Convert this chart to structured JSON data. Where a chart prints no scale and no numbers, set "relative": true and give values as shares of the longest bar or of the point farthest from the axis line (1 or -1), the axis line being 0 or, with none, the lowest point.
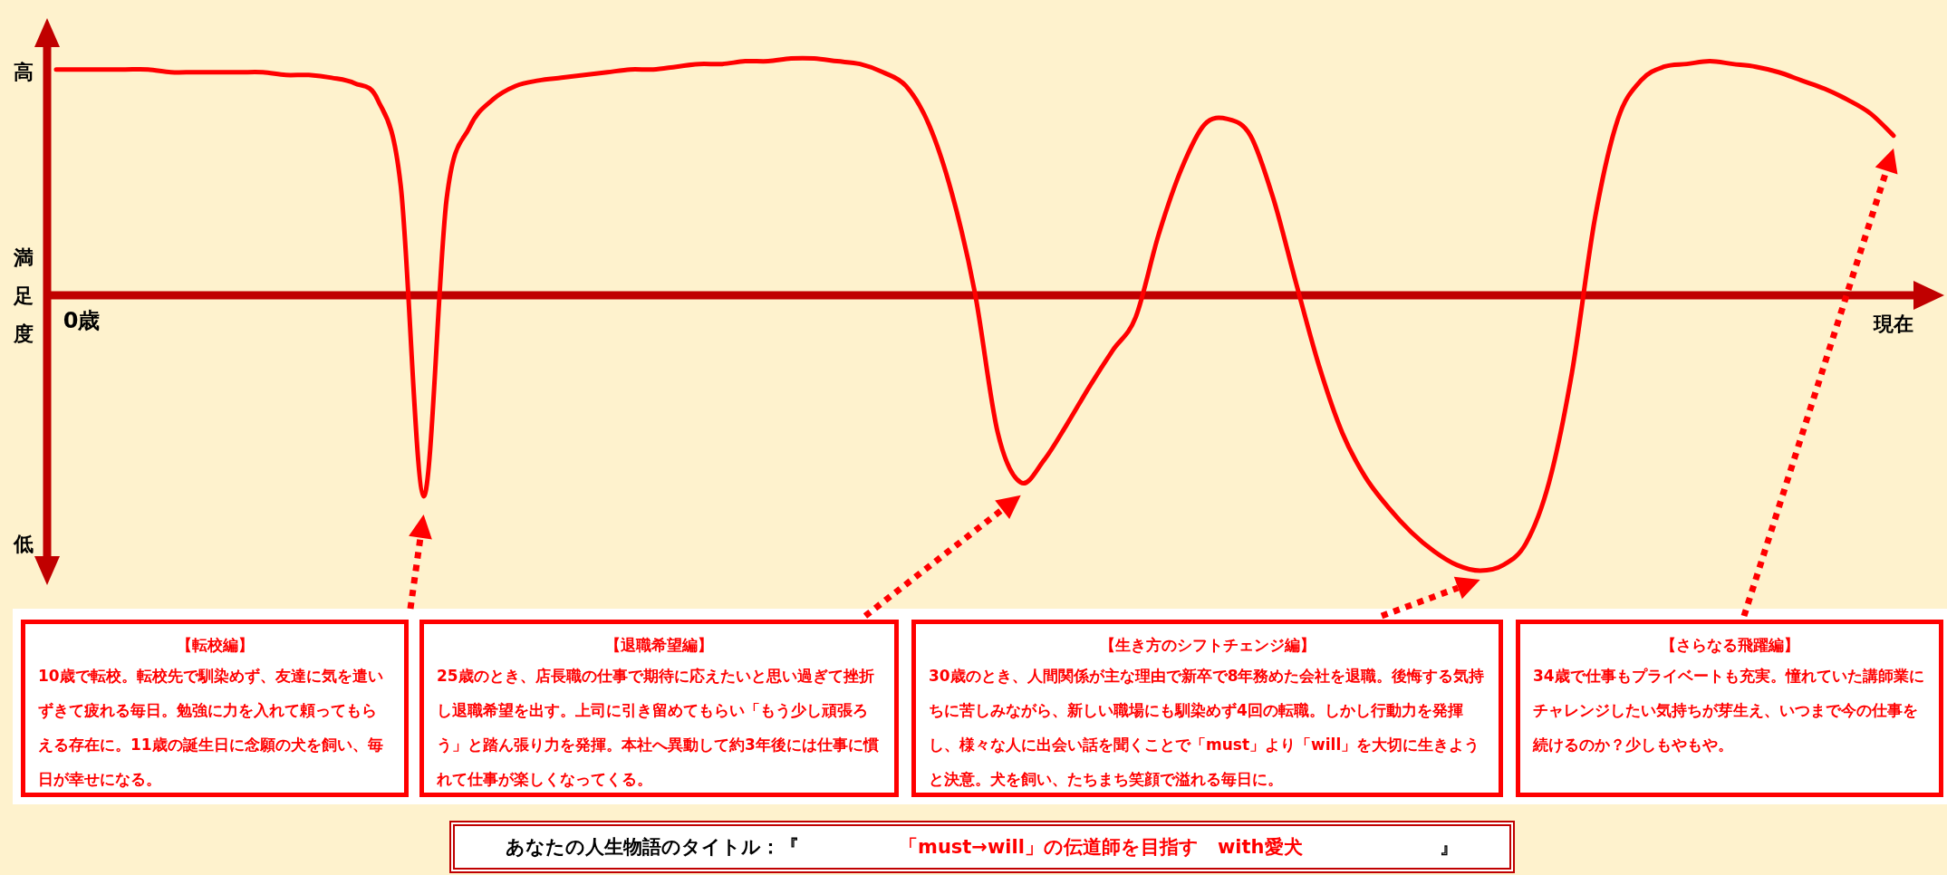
{
  "chart_data": {
    "type": "line",
    "relative": true,
    "ylabel": "満足度",
    "title": "「must→will」の伝道師を目指す　with愛犬",
    "categories": [
      null,
      null,
      null,
      null,
      null,
      null,
      null,
      null,
      null,
      null,
      null,
      null,
      null,
      null,
      null,
      null,
      null,
      null,
      null,
      null,
      null,
      null,
      null,
      null,
      null,
      null,
      null,
      null,
      null,
      null,
      null,
      null,
      null,
      null,
      null,
      null,
      null,
      null,
      null,
      null,
      null,
      null,
      null,
      null,
      null,
      null,
      null,
      null,
      null,
      null,
      null,
      null,
      null,
      null,
      null,
      null,
      null,
      null,
      null,
      null,
      null,
      null,
      null,
      null,
      null,
      null,
      null,
      null,
      null,
      null,
      null,
      null,
      null,
      null,
      null,
      null,
      null,
      null,
      null,
      null,
      null
    ],
    "series": [
      {
        "color": "#ff0000",
        "values": [
          0.82,
          0.82,
          0.82,
          0.82,
          0.82,
          0.81,
          0.81,
          0.81,
          0.81,
          0.81,
          0.8,
          0.8,
          0.79,
          0.77,
          0.71,
          0.4,
          -0.73,
          0.35,
          0.61,
          0.71,
          0.76,
          0.78,
          0.79,
          0.8,
          0.81,
          0.82,
          0.82,
          0.83,
          0.84,
          0.84,
          0.85,
          0.85,
          0.86,
          0.86,
          0.85,
          0.84,
          0.81,
          0.76,
          0.62,
          0.37,
          0.01,
          -0.5,
          -0.68,
          -0.6,
          -0.47,
          -0.33,
          -0.2,
          -0.08,
          0.22,
          0.46,
          0.62,
          0.64,
          0.58,
          0.35,
          0.04,
          -0.26,
          -0.5,
          -0.66,
          -0.77,
          -0.86,
          -0.93,
          -0.98,
          -1.0,
          -0.98,
          -0.9,
          -0.68,
          -0.28,
          0.28,
          0.64,
          0.78,
          0.83,
          0.84,
          0.85,
          0.84,
          0.83,
          0.81,
          0.78,
          0.75,
          0.71,
          0.66,
          0.58
        ]
      }
    ],
    "ref_lines": [
      {
        "axis": "y",
        "value": 0,
        "color": "#c00000"
      }
    ],
    "annotations": [
      "高",
      "低",
      "0歳",
      "現在",
      "【転校編】",
      "10歳で転校。転校先で馴染めず、友達に気を遣いずきて疲れる毎日。勉強に力を入れて頼ってもらえる存在に。11歳の誕生日に念願の犬を飼い、毎日が幸せになる。",
      "【退職希望編】",
      "25歳のとき、店長職の仕事で期待に応えたいと思い過ぎて挫折し退職希望を出す。上司に引き留めてもらい「もう少し頑張ろう」と踏ん張り力を発揮。本社へ異動して約3年後には仕事に慣れて仕事が楽しくなってくる。",
      "【生き方のシフトチェンジ編】",
      "30歳のとき、人間関係が主な理由で新卒で8年務めた会社を退職。後悔する気持ちに苦しみながら、新しい職場にも馴染めず4回の転職。しかし行動力を発揮し、様々な人に出会い話を聞くことで「must」より「will」を大切に生きようと決意。犬を飼い、たちまち笑顔で溢れる毎日に。",
      "【さらなる飛躍編】",
      "34歳で仕事もプライベートも充実。憧れていた講師業にチャレンジしたい気持ちが芽生え、いつまで今の仕事を続けるのか？少しもやもや。",
      "あなたの人生物語のタイトル：『",
      "』"
    ]
  }
}
